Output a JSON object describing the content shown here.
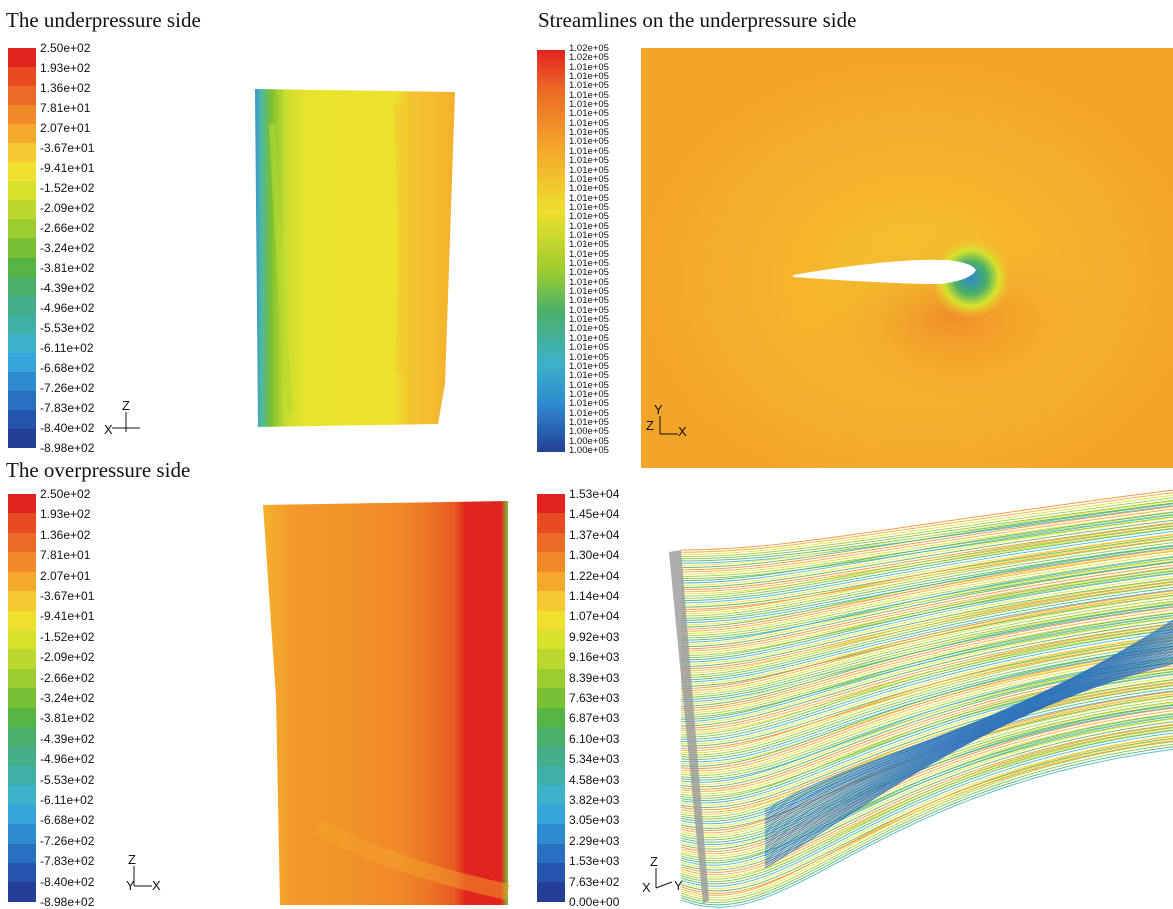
{
  "titles": {
    "top_left": "The underpressure side",
    "top_right": "Streamlines on the underpressure side",
    "bottom_left": "The overpressure side"
  },
  "legend_pressure": {
    "labels": [
      "2.50e+02",
      "1.93e+02",
      "1.36e+02",
      "7.81e+01",
      "2.07e+01",
      "-3.67e+01",
      "-9.41e+01",
      "-1.52e+02",
      "-2.09e+02",
      "-2.66e+02",
      "-3.24e+02",
      "-3.81e+02",
      "-4.39e+02",
      "-4.96e+02",
      "-5.53e+02",
      "-6.11e+02",
      "-6.68e+02",
      "-7.26e+02",
      "-7.83e+02",
      "-8.40e+02",
      "-8.98e+02"
    ],
    "colors": [
      "#e2231f",
      "#e84a22",
      "#ec6a26",
      "#f08a28",
      "#f4a82c",
      "#f7c832",
      "#eee02c",
      "#d8e22c",
      "#bcd82e",
      "#9ccd30",
      "#79c033",
      "#55b444",
      "#4aaf68",
      "#43ae88",
      "#3fb0a6",
      "#3cb1c8",
      "#35a6dc",
      "#2e8bd0",
      "#2a70c0",
      "#2455ac",
      "#243f96"
    ]
  },
  "legend_streamlines": {
    "labels": [
      "1.53e+04",
      "1.45e+04",
      "1.37e+04",
      "1.30e+04",
      "1.22e+04",
      "1.14e+04",
      "1.07e+04",
      "9.92e+03",
      "9.16e+03",
      "8.39e+03",
      "7.63e+03",
      "6.87e+03",
      "6.10e+03",
      "5.34e+03",
      "4.58e+03",
      "3.82e+03",
      "3.05e+03",
      "2.29e+03",
      "1.53e+03",
      "7.63e+02",
      "0.00e+00"
    ],
    "colors": [
      "#e2231f",
      "#e84a22",
      "#ec6a26",
      "#f08a28",
      "#f4a82c",
      "#f7c832",
      "#eee02c",
      "#d8e22c",
      "#bcd82e",
      "#9ccd30",
      "#79c033",
      "#55b444",
      "#4aaf68",
      "#43ae88",
      "#3fb0a6",
      "#3cb1c8",
      "#35a6dc",
      "#2e8bd0",
      "#2a70c0",
      "#2455ac",
      "#243f96"
    ]
  },
  "legend_field": {
    "labels": [
      "1.02e+05",
      "1.02e+05",
      "1.01e+05",
      "1.01e+05",
      "1.01e+05",
      "1.01e+05",
      "1.01e+05",
      "1.01e+05",
      "1.01e+05",
      "1.01e+05",
      "1.01e+05",
      "1.01e+05",
      "1.01e+05",
      "1.01e+05",
      "1.01e+05",
      "1.01e+05",
      "1.01e+05",
      "1.01e+05",
      "1.01e+05",
      "1.01e+05",
      "1.01e+05",
      "1.01e+05",
      "1.01e+05",
      "1.01e+05",
      "1.01e+05",
      "1.01e+05",
      "1.01e+05",
      "1.01e+05",
      "1.01e+05",
      "1.01e+05",
      "1.01e+05",
      "1.01e+05",
      "1.01e+05",
      "1.01e+05",
      "1.01e+05",
      "1.01e+05",
      "1.01e+05",
      "1.01e+05",
      "1.01e+05",
      "1.01e+05",
      "1.01e+05",
      "1.00e+05",
      "1.00e+05",
      "1.00e+05"
    ]
  },
  "axes": {
    "tl": {
      "up": "Z",
      "right": "",
      "left": "X"
    },
    "tr": {
      "up": "Y",
      "right": "X",
      "left": "Z"
    },
    "bl": {
      "up": "Z",
      "right": "X",
      "left": "Y"
    },
    "br": {
      "up": "Z",
      "right": "Y",
      "left": "X"
    }
  }
}
